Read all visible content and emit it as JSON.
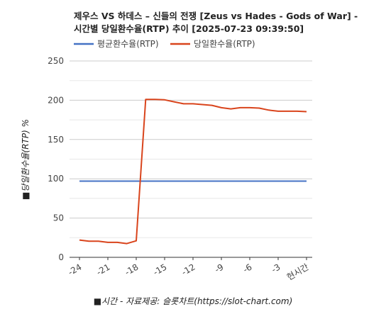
{
  "chart_data": {
    "type": "line",
    "title_lines": [
      "제우스 VS 하데스 – 신들의 전쟁 [Zeus vs Hades - Gods of War] -",
      "시간별 당일환수율(RTP) 추이 [2025-07-23 09:39:50]"
    ],
    "xlabel": "■시간 - 자료제공: 슬롯차트(https://slot-chart.com)",
    "ylabel": "■당일환수율(RTP) %",
    "x": [
      -24,
      -23,
      -22,
      -21,
      -20,
      -19,
      -18,
      -17,
      -16,
      -15,
      -14,
      -13,
      -12,
      -11,
      -10,
      -9,
      -8,
      -7,
      -6,
      -5,
      -4,
      -3,
      -2,
      -1,
      0
    ],
    "x_tick_labels": [
      {
        "x": -24,
        "label": "-24"
      },
      {
        "x": -21,
        "label": "-21"
      },
      {
        "x": -18,
        "label": "-18"
      },
      {
        "x": -15,
        "label": "-15"
      },
      {
        "x": -12,
        "label": "-12"
      },
      {
        "x": -9,
        "label": "-9"
      },
      {
        "x": -6,
        "label": "-6"
      },
      {
        "x": -3,
        "label": "-3"
      },
      {
        "x": 0,
        "label": "현시간"
      }
    ],
    "y_ticks": [
      0,
      50,
      100,
      150,
      200,
      250
    ],
    "ylim": [
      0,
      250
    ],
    "xlim": [
      -24,
      0
    ],
    "grid": true,
    "legend_position": "top-left",
    "series": [
      {
        "name": "평균환수율(RTP)",
        "color": "#4472C4",
        "values": [
          97,
          97,
          97,
          97,
          97,
          97,
          97,
          97,
          97,
          97,
          97,
          97,
          97,
          97,
          97,
          97,
          97,
          97,
          97,
          97,
          97,
          97,
          97,
          97,
          97
        ]
      },
      {
        "name": "당일환수율(RTP)",
        "color": "#D9441C",
        "values": [
          22,
          20.5,
          20.5,
          19,
          19,
          17.5,
          21,
          201,
          201,
          200.5,
          198,
          195.5,
          195.5,
          194.5,
          193.5,
          190.5,
          189,
          190.5,
          190.5,
          190,
          187.5,
          186,
          186,
          186,
          185.5
        ]
      }
    ]
  }
}
